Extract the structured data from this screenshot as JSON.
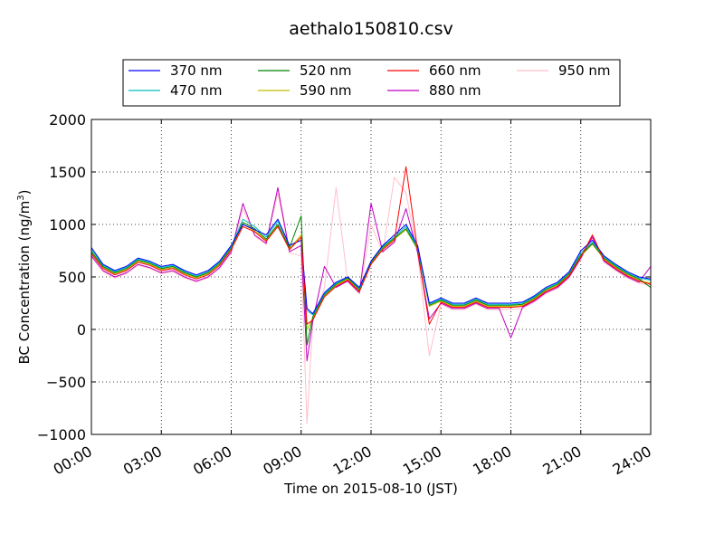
{
  "chart_data": {
    "type": "line",
    "title": "aethalo150810.csv",
    "xlabel": "Time on 2015-08-10 (JST)",
    "ylabel": "BC Concentration (ng/m³)",
    "ylabel_main": "BC Concentration (ng/m",
    "ylabel_sup": "3",
    "ylabel_tail": ")",
    "xlim": [
      0,
      24
    ],
    "ylim": [
      -1000,
      2000
    ],
    "grid": true,
    "legend_position": "top",
    "x_ticks": [
      {
        "value": 0,
        "label": "00:00"
      },
      {
        "value": 3,
        "label": "03:00"
      },
      {
        "value": 6,
        "label": "06:00"
      },
      {
        "value": 9,
        "label": "09:00"
      },
      {
        "value": 12,
        "label": "12:00"
      },
      {
        "value": 15,
        "label": "15:00"
      },
      {
        "value": 18,
        "label": "18:00"
      },
      {
        "value": 21,
        "label": "21:00"
      },
      {
        "value": 24,
        "label": "24:00"
      }
    ],
    "y_ticks": [
      {
        "value": 2000,
        "label": "2000"
      },
      {
        "value": 1500,
        "label": "1500"
      },
      {
        "value": 1000,
        "label": "1000"
      },
      {
        "value": 500,
        "label": "500"
      },
      {
        "value": 0,
        "label": "0"
      },
      {
        "value": -500,
        "label": "−500"
      },
      {
        "value": -1000,
        "label": "−1000"
      }
    ],
    "x": [
      0,
      0.5,
      1,
      1.5,
      2,
      2.5,
      3,
      3.5,
      4,
      4.5,
      5,
      5.5,
      6,
      6.5,
      7,
      7.5,
      8,
      8.5,
      9,
      9.25,
      9.5,
      10,
      10.5,
      11,
      11.5,
      12,
      12.5,
      13,
      13.5,
      14,
      14.5,
      15,
      15.5,
      16,
      16.5,
      17,
      17.5,
      18,
      18.5,
      19,
      19.5,
      20,
      20.5,
      21,
      21.5,
      22,
      22.5,
      23,
      23.5,
      24
    ],
    "series": [
      {
        "name": "370 nm",
        "color": "#0000ff",
        "values": [
          780,
          620,
          560,
          600,
          680,
          650,
          600,
          620,
          560,
          520,
          560,
          650,
          800,
          1000,
          950,
          900,
          1050,
          800,
          850,
          200,
          150,
          350,
          450,
          500,
          400,
          650,
          800,
          900,
          1000,
          800,
          250,
          300,
          250,
          250,
          300,
          250,
          250,
          250,
          260,
          320,
          400,
          450,
          550,
          750,
          850,
          700,
          620,
          550,
          500,
          480
        ]
      },
      {
        "name": "470 nm",
        "color": "#00bfbf",
        "values": [
          760,
          610,
          550,
          590,
          670,
          640,
          590,
          610,
          550,
          510,
          550,
          640,
          790,
          1050,
          980,
          880,
          1030,
          800,
          850,
          180,
          140,
          340,
          440,
          500,
          390,
          650,
          790,
          880,
          980,
          780,
          240,
          290,
          240,
          240,
          290,
          240,
          240,
          240,
          250,
          310,
          390,
          440,
          540,
          730,
          830,
          690,
          610,
          540,
          490,
          470
        ]
      },
      {
        "name": "520 nm",
        "color": "#008000",
        "values": [
          740,
          600,
          540,
          580,
          660,
          630,
          580,
          600,
          540,
          500,
          540,
          630,
          780,
          1020,
          960,
          860,
          1000,
          780,
          1080,
          -150,
          120,
          330,
          430,
          490,
          380,
          640,
          780,
          870,
          960,
          770,
          230,
          280,
          230,
          230,
          280,
          230,
          230,
          230,
          240,
          300,
          380,
          430,
          530,
          710,
          820,
          680,
          600,
          530,
          480,
          400
        ]
      },
      {
        "name": "590 nm",
        "color": "#bfbf00",
        "values": [
          730,
          590,
          530,
          570,
          650,
          620,
          570,
          590,
          530,
          490,
          530,
          620,
          770,
          1000,
          940,
          850,
          990,
          770,
          900,
          0,
          100,
          320,
          420,
          480,
          370,
          630,
          770,
          860,
          950,
          760,
          220,
          270,
          220,
          220,
          270,
          220,
          220,
          220,
          230,
          290,
          370,
          420,
          520,
          700,
          810,
          670,
          590,
          520,
          470,
          440
        ]
      },
      {
        "name": "660 nm",
        "color": "#ff0000",
        "values": [
          720,
          580,
          520,
          560,
          640,
          610,
          560,
          580,
          520,
          480,
          520,
          610,
          760,
          980,
          930,
          840,
          980,
          760,
          880,
          50,
          90,
          310,
          410,
          470,
          360,
          620,
          760,
          850,
          1550,
          750,
          50,
          260,
          210,
          210,
          260,
          210,
          210,
          210,
          220,
          280,
          360,
          410,
          510,
          690,
          900,
          660,
          580,
          510,
          460,
          430
        ]
      },
      {
        "name": "880 nm",
        "color": "#bf00bf",
        "values": [
          700,
          560,
          500,
          540,
          620,
          590,
          540,
          560,
          500,
          460,
          500,
          590,
          740,
          1200,
          900,
          820,
          1350,
          740,
          800,
          -300,
          80,
          600,
          400,
          460,
          350,
          1200,
          740,
          830,
          1150,
          730,
          100,
          250,
          200,
          200,
          250,
          200,
          200,
          -80,
          210,
          270,
          350,
          400,
          500,
          680,
          880,
          650,
          570,
          500,
          450,
          600
        ]
      },
      {
        "name": "950 nm",
        "color": "#ffc0cb",
        "values": [
          690,
          550,
          490,
          530,
          610,
          580,
          530,
          550,
          490,
          450,
          490,
          580,
          730,
          1150,
          890,
          810,
          1300,
          730,
          700,
          -900,
          70,
          400,
          1350,
          450,
          340,
          1000,
          730,
          1450,
          1300,
          720,
          -250,
          240,
          190,
          190,
          240,
          190,
          190,
          190,
          200,
          260,
          340,
          390,
          490,
          670,
          870,
          640,
          560,
          490,
          440,
          420
        ]
      }
    ]
  }
}
